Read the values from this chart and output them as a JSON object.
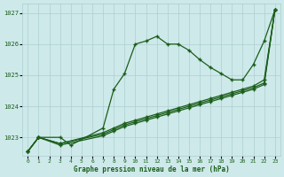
{
  "title": "Graphe pression niveau de la mer (hPa)",
  "x_labels": [
    "0",
    "1",
    "2",
    "3",
    "4",
    "5",
    "6",
    "7",
    "8",
    "9",
    "10",
    "11",
    "12",
    "13",
    "14",
    "15",
    "16",
    "17",
    "18",
    "19",
    "20",
    "21",
    "22",
    "23"
  ],
  "ylim": [
    1022.4,
    1027.3
  ],
  "yticks": [
    1023,
    1024,
    1025,
    1026,
    1027
  ],
  "background_color": "#cee9ea",
  "grid_color": "#aecfcf",
  "line_color": "#1a5e1a",
  "series": [
    [
      1022.55,
      1023.0,
      null,
      1023.0,
      1022.75,
      null,
      null,
      1023.3,
      1024.55,
      1025.05,
      1026.0,
      1026.1,
      1026.25,
      1026.0,
      1026.0,
      1025.8,
      1025.5,
      1025.25,
      1025.05,
      1024.85,
      1024.85,
      1025.35,
      1026.1,
      1027.1
    ],
    [
      1022.55,
      1023.0,
      null,
      1022.8,
      null,
      null,
      null,
      1023.15,
      1023.3,
      1023.45,
      1023.55,
      1023.65,
      1023.75,
      1023.85,
      1023.95,
      1024.05,
      1024.15,
      1024.25,
      1024.35,
      1024.45,
      1024.55,
      1024.65,
      1024.85,
      1027.1
    ],
    [
      1022.55,
      1023.0,
      null,
      1022.8,
      null,
      null,
      null,
      1023.1,
      1023.25,
      1023.4,
      1023.5,
      1023.6,
      1023.7,
      1023.8,
      1023.9,
      1024.0,
      1024.1,
      1024.2,
      1024.3,
      1024.4,
      1024.5,
      1024.6,
      1024.75,
      1027.1
    ],
    [
      1022.55,
      1023.0,
      null,
      1022.75,
      null,
      null,
      null,
      1023.05,
      1023.2,
      1023.35,
      1023.45,
      1023.55,
      1023.65,
      1023.75,
      1023.85,
      1023.95,
      1024.05,
      1024.15,
      1024.25,
      1024.35,
      1024.45,
      1024.55,
      1024.7,
      1027.1
    ]
  ]
}
